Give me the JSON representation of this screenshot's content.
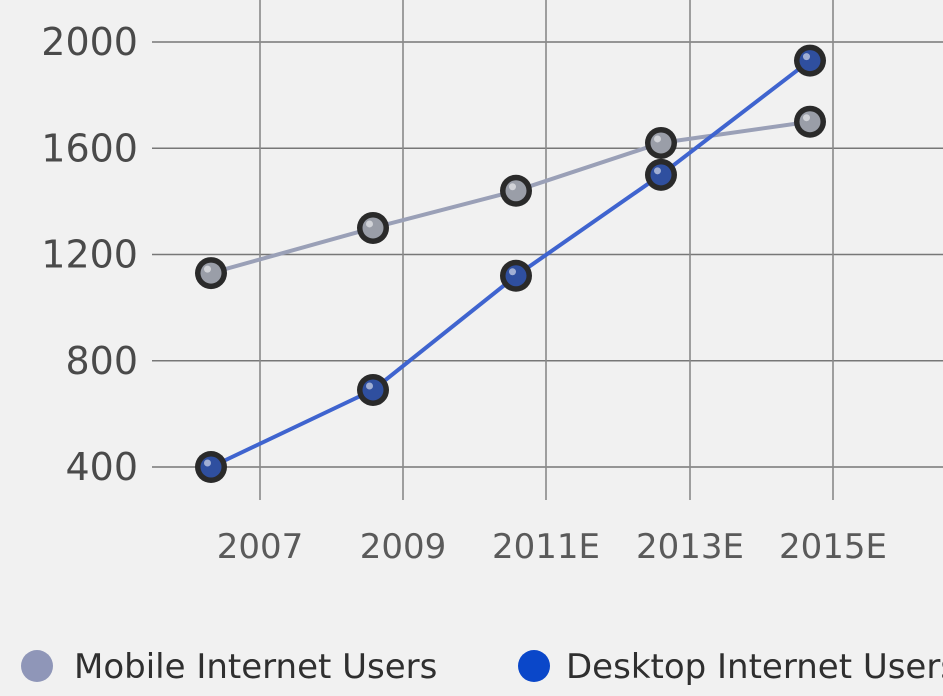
{
  "chart_data": {
    "type": "line",
    "title": "",
    "xlabel": "",
    "ylabel": "",
    "categories": [
      "2007",
      "2009",
      "2011E",
      "2013E",
      "2015E"
    ],
    "y_ticks": [
      "400",
      "800",
      "1200",
      "1600",
      "2000"
    ],
    "ylim": [
      400,
      2000
    ],
    "grid": true,
    "legend_placement": "bottom",
    "series": [
      {
        "name": "Mobile Internet Users",
        "values": [
          1130,
          1300,
          1440,
          1620,
          1700
        ],
        "color": "#8f96b8"
      },
      {
        "name": "Desktop Internet Users",
        "values": [
          400,
          690,
          1120,
          1500,
          1930
        ],
        "color": "#0a47c9"
      }
    ]
  }
}
